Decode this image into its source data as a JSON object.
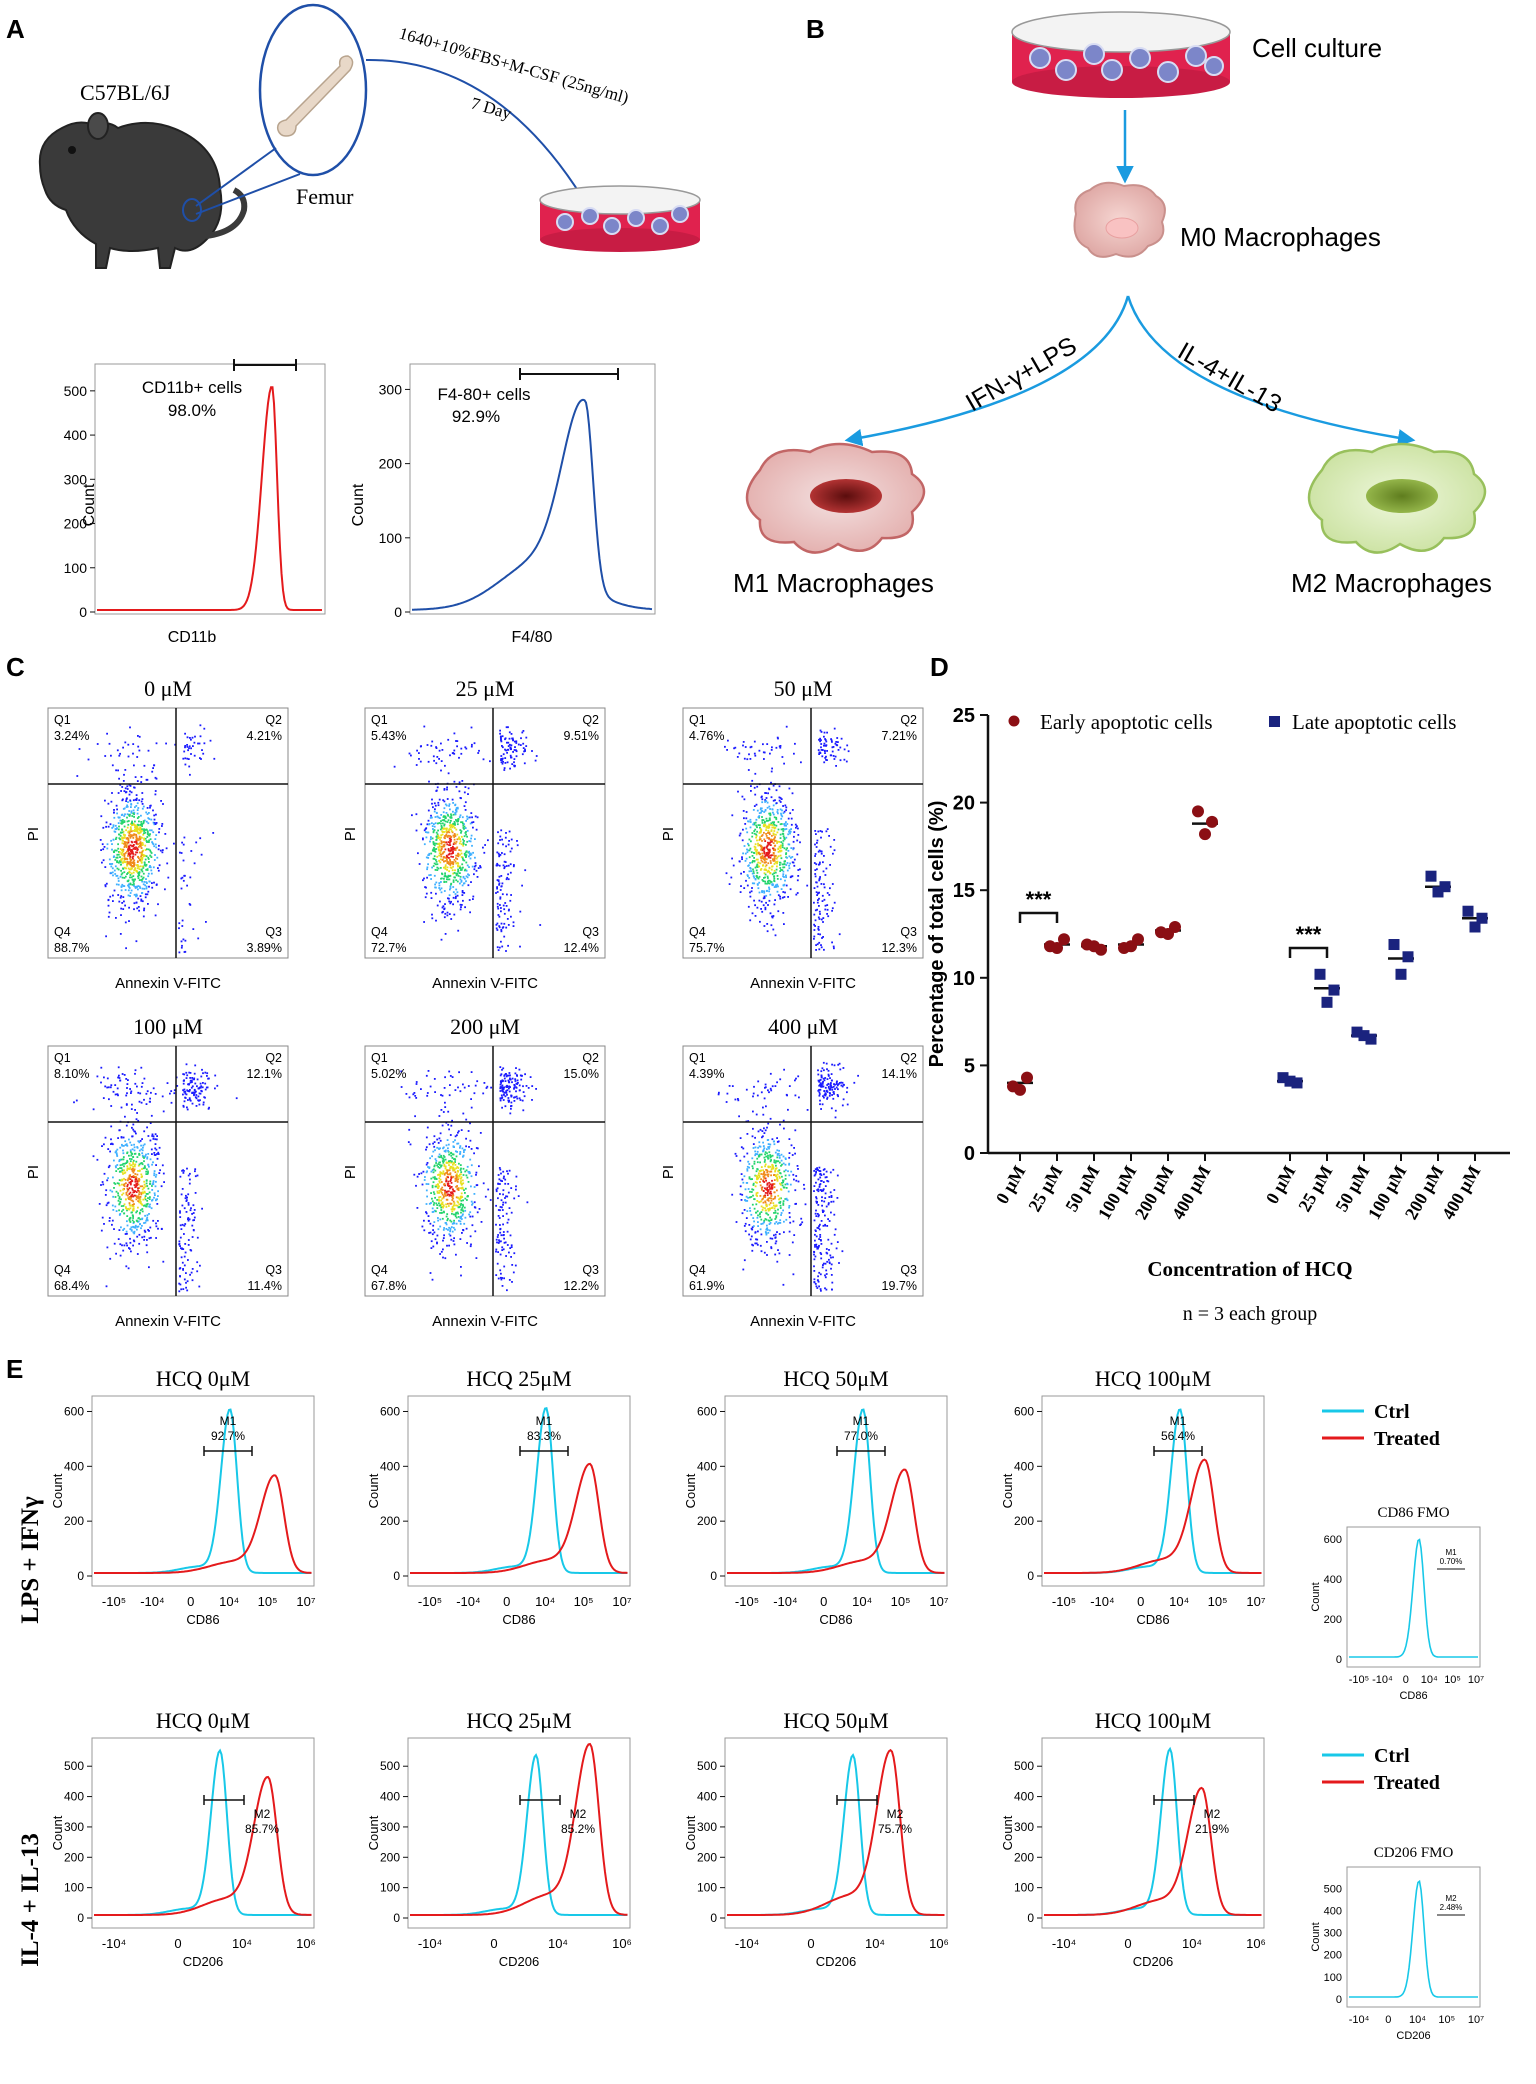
{
  "panels": {
    "A": "A",
    "B": "B",
    "C": "C",
    "D": "D",
    "E": "E"
  },
  "colors": {
    "red": "#e41a1c",
    "blue": "#1f4fa8",
    "cyan": "#18c8e8",
    "arrow": "#1a9be0",
    "dish": "#e0224e",
    "mouse": "#3a3a3a",
    "m1": "#c97a7a",
    "m2": "#b9d98a",
    "dark_red": "#8b0f14",
    "navy": "#1a237e"
  },
  "panelA": {
    "strain": "C57BL/6J",
    "femur": "Femur",
    "medium": "1640+10%FBS+M-CSF (25ng/ml)",
    "days": "7 Day",
    "hist1": {
      "gate": "CD11b+ cells",
      "pct": "98.0%",
      "xlabel": "CD11b",
      "ylabel": "Count",
      "yticks": [
        "0",
        "100",
        "200",
        "300",
        "400",
        "500"
      ],
      "ymax": 520
    },
    "hist2": {
      "gate": "F4-80+ cells",
      "pct": "92.9%",
      "xlabel": "F4/80",
      "ylabel": "Count",
      "yticks": [
        "0",
        "100",
        "200",
        "300"
      ],
      "ymax": 310
    }
  },
  "panelB": {
    "culture": "Cell culture",
    "m0": "M0 Macrophages",
    "m1_stim": "IFN-γ+LPS",
    "m2_stim": "IL-4+IL-13",
    "m1": "M1 Macrophages",
    "m2": "M2 Macrophages"
  },
  "panelC": {
    "xlabel": "Annexin V-FITC",
    "ylabel": "PI",
    "plots": [
      {
        "title": "0 μM",
        "q1": "3.24%",
        "q2": "4.21%",
        "q3": "3.89%",
        "q4": "88.7%"
      },
      {
        "title": "25 μM",
        "q1": "5.43%",
        "q2": "9.51%",
        "q3": "12.4%",
        "q4": "72.7%"
      },
      {
        "title": "50 μM",
        "q1": "4.76%",
        "q2": "7.21%",
        "q3": "12.3%",
        "q4": "75.7%"
      },
      {
        "title": "100 μM",
        "q1": "8.10%",
        "q2": "12.1%",
        "q3": "11.4%",
        "q4": "68.4%"
      },
      {
        "title": "200 μM",
        "q1": "5.02%",
        "q2": "15.0%",
        "q3": "12.2%",
        "q4": "67.8%"
      },
      {
        "title": "400 μM",
        "q1": "4.39%",
        "q2": "14.1%",
        "q3": "19.7%",
        "q4": "61.9%"
      }
    ],
    "quad_labels": [
      "Q1",
      "Q2",
      "Q3",
      "Q4"
    ]
  },
  "chart_data": {
    "type": "scatter",
    "title": "",
    "xlabel": "Concentration of HCQ",
    "ylabel": "Percentage of total cells (%)",
    "note": "n = 3 each group",
    "ylim": [
      0,
      25
    ],
    "yticks": [
      0,
      5,
      10,
      15,
      20,
      25
    ],
    "categories": [
      "0 μM",
      "25 μM",
      "50 μM",
      "100 μM",
      "200 μM",
      "400 μM"
    ],
    "significance": "***",
    "series": [
      {
        "name": "Early apoptotic cells",
        "color": "#8b0f14",
        "marker": "circle",
        "means": [
          4.0,
          11.9,
          11.8,
          11.9,
          12.7,
          18.8
        ],
        "points": [
          [
            3.8,
            4.3,
            3.6
          ],
          [
            11.8,
            12.2,
            11.7
          ],
          [
            11.9,
            11.6,
            11.8
          ],
          [
            11.7,
            12.2,
            11.8
          ],
          [
            12.6,
            12.9,
            12.5
          ],
          [
            19.5,
            18.9,
            18.2
          ]
        ]
      },
      {
        "name": "Late apoptotic cells",
        "color": "#1a237e",
        "marker": "square",
        "means": [
          4.1,
          9.4,
          6.7,
          11.1,
          15.2,
          13.4
        ],
        "points": [
          [
            4.3,
            4.0,
            4.1
          ],
          [
            10.2,
            9.3,
            8.6
          ],
          [
            6.9,
            6.5,
            6.7
          ],
          [
            11.9,
            11.2,
            10.2
          ],
          [
            15.8,
            15.2,
            14.9
          ],
          [
            13.8,
            13.4,
            12.9
          ]
        ]
      }
    ]
  },
  "panelE": {
    "legend_ctrl": "Ctrl",
    "legend_treated": "Treated",
    "row1_label": "LPS + IFNγ",
    "row2_label": "IL-4 + IL-13",
    "row1": {
      "xlabel": "CD86",
      "ylabel": "Count",
      "yticks": [
        "0",
        "200",
        "400",
        "600"
      ],
      "ymax": 620,
      "xticks": [
        "-10⁵",
        "-10⁴",
        "0",
        "10⁴",
        "10⁵",
        "10⁷"
      ],
      "gate": "M1",
      "plots": [
        {
          "title": "HCQ 0μM",
          "pct": "92.7%",
          "ctrl_peak": 590,
          "treated_peak": 345
        },
        {
          "title": "HCQ 25μM",
          "pct": "83.3%",
          "ctrl_peak": 595,
          "treated_peak": 385
        },
        {
          "title": "HCQ 50μM",
          "pct": "77.0%",
          "ctrl_peak": 590,
          "treated_peak": 365
        },
        {
          "title": "HCQ 100μM",
          "pct": "56.4%",
          "ctrl_peak": 590,
          "treated_peak": 400
        }
      ],
      "fmo": {
        "title": "CD86 FMO",
        "pct": "0.70%",
        "peak": 590
      }
    },
    "row2": {
      "xlabel": "CD206",
      "ylabel": "Count",
      "yticks": [
        "0",
        "100",
        "200",
        "300",
        "400",
        "500"
      ],
      "ymax": 560,
      "xticks": [
        "-10⁴",
        "0",
        "10⁴",
        "10⁶"
      ],
      "fmo_xticks": [
        "-10⁴",
        "0",
        "10⁴",
        "10⁵",
        "10⁷"
      ],
      "gate": "M2",
      "plots": [
        {
          "title": "HCQ 0μM",
          "pct": "85.7%",
          "ctrl_peak": 535,
          "treated_peak": 440
        },
        {
          "title": "HCQ 25μM",
          "pct": "85.2%",
          "ctrl_peak": 520,
          "treated_peak": 545
        },
        {
          "title": "HCQ 50μM",
          "pct": "75.7%",
          "ctrl_peak": 520,
          "treated_peak": 525
        },
        {
          "title": "HCQ 100μM",
          "pct": "21.9%",
          "ctrl_peak": 540,
          "treated_peak": 405
        }
      ],
      "fmo": {
        "title": "CD206 FMO",
        "pct": "2.48%",
        "peak": 525
      }
    }
  }
}
